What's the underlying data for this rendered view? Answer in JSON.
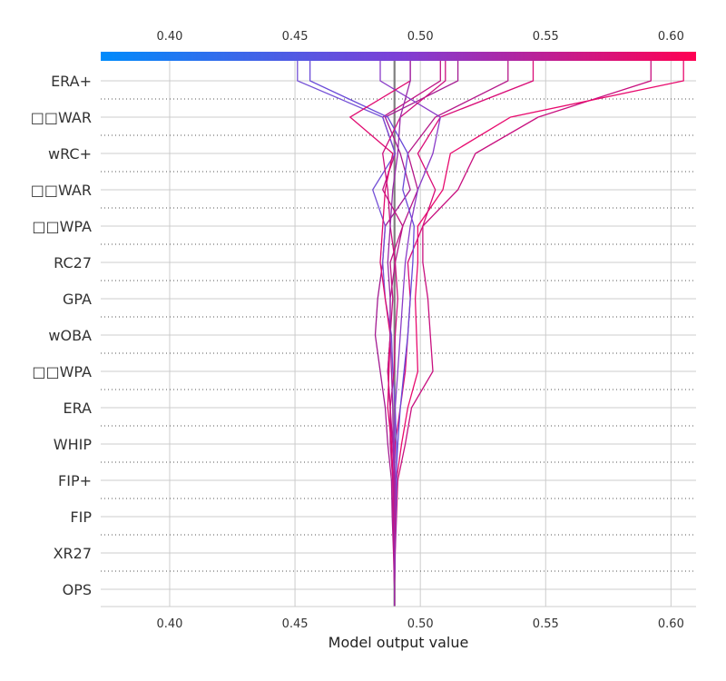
{
  "chart_data": {
    "type": "line",
    "xlabel": "Model output value",
    "xlim": [
      0.3725,
      0.61
    ],
    "xticks": [
      0.4,
      0.45,
      0.5,
      0.55,
      0.6
    ],
    "xtick_labels": [
      "0.40",
      "0.45",
      "0.50",
      "0.55",
      "0.60"
    ],
    "base_value": 0.4897,
    "features": [
      "OPS",
      "XR27",
      "FIP",
      "FIP+",
      "WHIP",
      "ERA",
      "□□WPA",
      "wOBA",
      "GPA",
      "RC27",
      "□□WPA",
      "□□WAR",
      "wRC+",
      "□□WAR",
      "ERA+"
    ],
    "colorbar": {
      "low_color": "#008bfb",
      "mid_color": "#7d3fd6",
      "high_color": "#ff0052"
    },
    "series": [
      {
        "color": "#c8107f",
        "values": [
          0.4897,
          0.49,
          0.4905,
          0.491,
          0.494,
          0.4965,
          0.505,
          0.504,
          0.503,
          0.501,
          0.501,
          0.515,
          0.522,
          0.547,
          0.592
        ]
      },
      {
        "color": "#e80a6e",
        "values": [
          0.4897,
          0.4898,
          0.4903,
          0.4905,
          0.4925,
          0.495,
          0.499,
          0.4985,
          0.498,
          0.499,
          0.499,
          0.509,
          0.512,
          0.536,
          0.605
        ]
      },
      {
        "color": "#d90c77",
        "values": [
          0.4897,
          0.4895,
          0.49,
          0.4895,
          0.49,
          0.492,
          0.494,
          0.495,
          0.496,
          0.495,
          0.501,
          0.506,
          0.499,
          0.508,
          0.545
        ]
      },
      {
        "color": "#b5188a",
        "values": [
          0.4897,
          0.4895,
          0.4892,
          0.489,
          0.488,
          0.488,
          0.487,
          0.488,
          0.488,
          0.49,
          0.493,
          0.499,
          0.495,
          0.506,
          0.535
        ]
      },
      {
        "color": "#a41b92",
        "values": [
          0.4897,
          0.4893,
          0.4888,
          0.4885,
          0.487,
          0.486,
          0.484,
          0.482,
          0.483,
          0.485,
          0.486,
          0.496,
          0.492,
          0.486,
          0.515
        ]
      },
      {
        "color": "#c01284",
        "values": [
          0.4897,
          0.4896,
          0.4893,
          0.489,
          0.4885,
          0.488,
          0.487,
          0.488,
          0.489,
          0.488,
          0.493,
          0.485,
          0.49,
          0.485,
          0.508
        ]
      },
      {
        "color": "#6a4ad8",
        "values": [
          0.4897,
          0.4899,
          0.4901,
          0.4903,
          0.491,
          0.492,
          0.4935,
          0.495,
          0.496,
          0.497,
          0.4975,
          0.493,
          0.495,
          0.487,
          0.456
        ]
      },
      {
        "color": "#7450d6",
        "values": [
          0.4897,
          0.4899,
          0.4902,
          0.4905,
          0.4905,
          0.49,
          0.489,
          0.4885,
          0.486,
          0.485,
          0.486,
          0.481,
          0.49,
          0.485,
          0.451
        ]
      },
      {
        "color": "#8a3cc8",
        "values": [
          0.4897,
          0.4898,
          0.49,
          0.49,
          0.4895,
          0.49,
          0.491,
          0.492,
          0.493,
          0.494,
          0.496,
          0.499,
          0.505,
          0.508,
          0.484
        ]
      },
      {
        "color": "#e00a70",
        "values": [
          0.4897,
          0.4896,
          0.4894,
          0.4892,
          0.4885,
          0.487,
          0.4875,
          0.488,
          0.486,
          0.484,
          0.485,
          0.486,
          0.489,
          0.472,
          0.496
        ]
      },
      {
        "color": "#cc1080",
        "values": [
          0.4897,
          0.4898,
          0.4899,
          0.4898,
          0.489,
          0.488,
          0.4895,
          0.49,
          0.491,
          0.49,
          0.488,
          0.487,
          0.485,
          0.492,
          0.51
        ]
      },
      {
        "color": "#9a2aa8",
        "values": [
          0.4897,
          0.4897,
          0.4896,
          0.4895,
          0.4892,
          0.489,
          0.4885,
          0.488,
          0.488,
          0.487,
          0.488,
          0.489,
          0.491,
          0.492,
          0.496
        ]
      }
    ]
  }
}
